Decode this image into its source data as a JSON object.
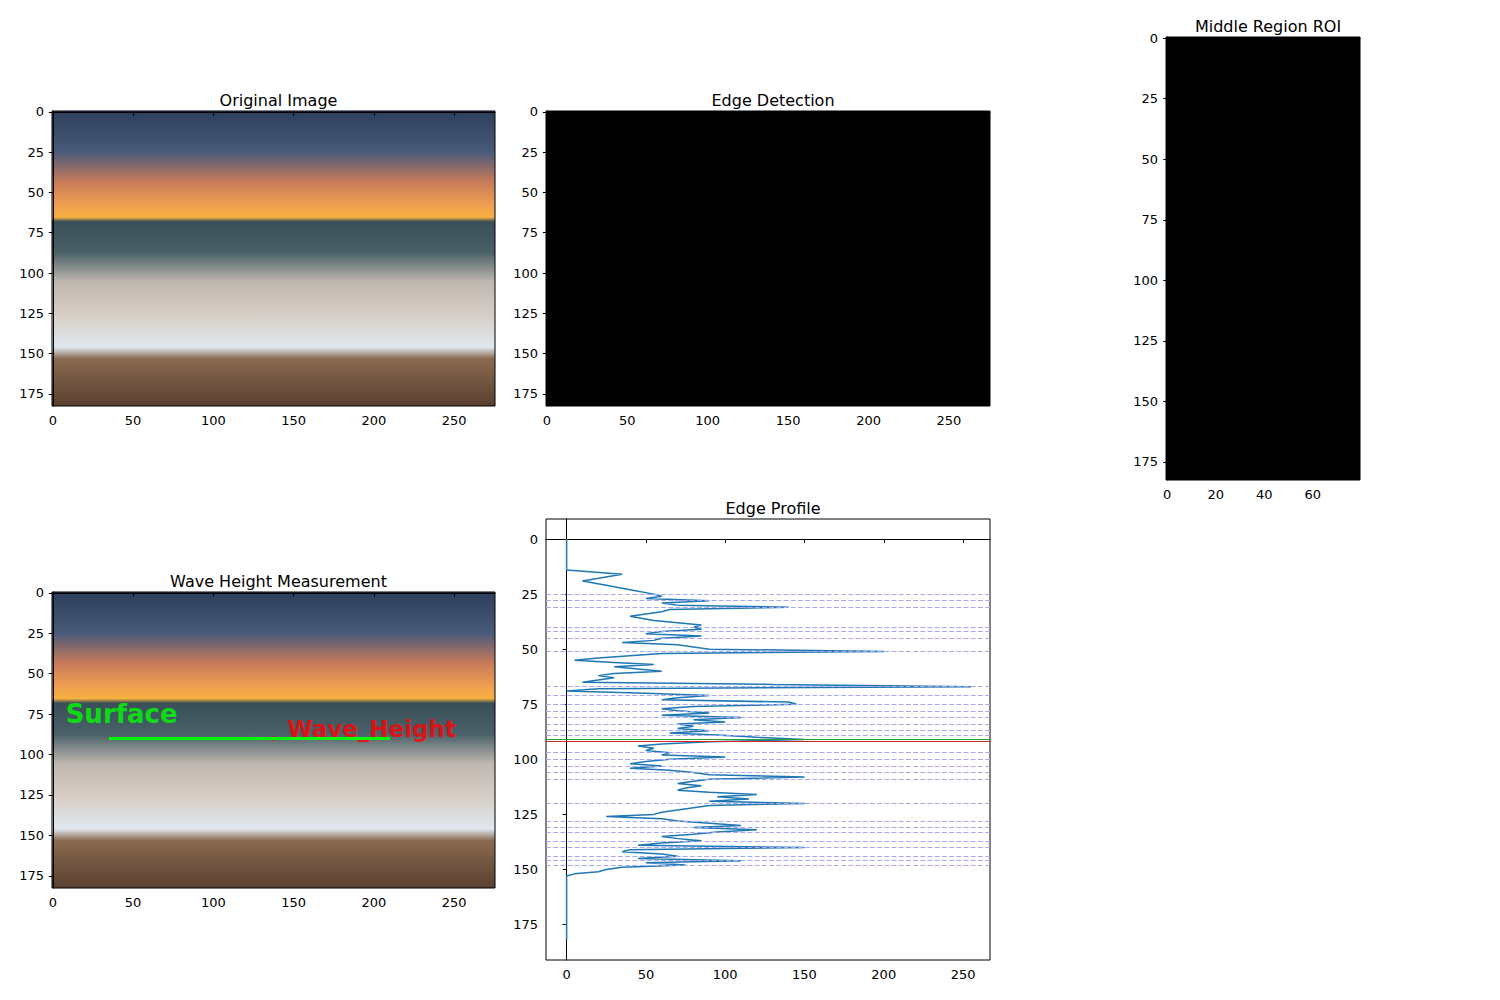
{
  "chart_data": [
    {
      "type": "image",
      "title": "Original Image",
      "xlim": [
        -0.5,
        275.5
      ],
      "ylim": [
        182.5,
        -0.5
      ],
      "xticks": [
        0,
        50,
        100,
        150,
        200,
        250
      ],
      "yticks": [
        0,
        25,
        50,
        75,
        100,
        125,
        150,
        175
      ]
    },
    {
      "type": "image",
      "title": "Edge Detection",
      "color": "#000000",
      "xlim": [
        -0.5,
        275.5
      ],
      "ylim": [
        182.5,
        -0.5
      ],
      "xticks": [
        0,
        50,
        100,
        150,
        200,
        250
      ],
      "yticks": [
        0,
        25,
        50,
        75,
        100,
        125,
        150,
        175
      ]
    },
    {
      "type": "image",
      "title": "Middle Region ROI",
      "color": "#000000",
      "xlim": [
        -0.5,
        79.5
      ],
      "ylim": [
        182.5,
        -0.5
      ],
      "xticks": [
        0,
        20,
        40,
        60
      ],
      "yticks": [
        0,
        25,
        50,
        75,
        100,
        125,
        150,
        175
      ]
    },
    {
      "type": "image",
      "title": "Wave Height Measurement",
      "xlim": [
        -0.5,
        275.5
      ],
      "ylim": [
        182.5,
        -0.5
      ],
      "xticks": [
        0,
        50,
        100,
        150,
        200,
        250
      ],
      "yticks": [
        0,
        25,
        50,
        75,
        100,
        125,
        150,
        175
      ],
      "annotations": [
        {
          "text": "Surface",
          "x": 8,
          "y": 75,
          "color": "#00ff00"
        },
        {
          "text": "Wave_Height",
          "x": 146,
          "y": 84,
          "color": "#ff0000"
        }
      ],
      "segments": [
        {
          "x": [
            35,
            210
          ],
          "y": [
            90,
            90
          ],
          "color": "#00ff00"
        }
      ],
      "points": [
        {
          "x": 137,
          "y": 90,
          "color": "#ff0000"
        }
      ]
    },
    {
      "type": "line",
      "title": "Edge Profile",
      "color": "#1f77b4",
      "xlim": [
        -13,
        267
      ],
      "ylim": [
        191.1,
        -9.1
      ],
      "xticks": [
        0,
        50,
        100,
        150,
        200,
        250
      ],
      "yticks": [
        0,
        25,
        50,
        75,
        100,
        125,
        150,
        175
      ],
      "x": [
        0,
        0,
        35,
        10,
        25,
        40,
        55,
        60,
        50,
        90,
        60,
        70,
        140,
        65,
        60,
        40,
        55,
        70,
        85,
        80,
        85,
        60,
        50,
        85,
        60,
        55,
        35,
        70,
        80,
        90,
        200,
        60,
        40,
        20,
        5,
        30,
        55,
        30,
        45,
        60,
        30,
        20,
        30,
        20,
        10,
        130,
        255,
        20,
        0,
        50,
        90,
        70,
        60,
        140,
        145,
        80,
        60,
        70,
        90,
        60,
        110,
        80,
        100,
        70,
        80,
        70,
        90,
        65,
        95,
        120,
        150,
        90,
        60,
        45,
        55,
        50,
        65,
        60,
        100,
        65,
        50,
        40,
        60,
        40,
        65,
        80,
        90,
        150,
        90,
        80,
        70,
        85,
        75,
        70,
        90,
        120,
        95,
        115,
        90,
        150,
        90,
        80,
        70,
        60,
        55,
        25,
        60,
        70,
        90,
        110,
        80,
        120,
        95,
        80,
        60,
        70,
        85,
        60,
        45,
        150,
        40,
        35,
        60,
        70,
        45,
        110,
        50,
        75,
        35,
        25,
        20,
        5,
        0,
        0
      ],
      "y": [
        0,
        14,
        16,
        19,
        21,
        23,
        25,
        26,
        27,
        28,
        29,
        30,
        31,
        32,
        33,
        35,
        37,
        38,
        39,
        40,
        41,
        42,
        43,
        44,
        45,
        46,
        47,
        48,
        49,
        50,
        51,
        52,
        53,
        54,
        55,
        56,
        57,
        58,
        59,
        60,
        61,
        62,
        63,
        64,
        65,
        66,
        67,
        68,
        69,
        70,
        71,
        72,
        73,
        74,
        75,
        76,
        77,
        78,
        79,
        80,
        81,
        82,
        83,
        84,
        85,
        86,
        87,
        88,
        89,
        90,
        91,
        92,
        93,
        94,
        95,
        96,
        97,
        98,
        99,
        100,
        101,
        102,
        103,
        104,
        105,
        106,
        107,
        108,
        109,
        110,
        111,
        112,
        113,
        114,
        115,
        116,
        117,
        118,
        119,
        120,
        121,
        122,
        123,
        124,
        125,
        126,
        127,
        128,
        129,
        130,
        131,
        132,
        133,
        134,
        135,
        136,
        137,
        138,
        139,
        140,
        141,
        142,
        143,
        144,
        145,
        146,
        147,
        148,
        149,
        150,
        151,
        152,
        153,
        182
      ],
      "reference_lines": [
        {
          "rows": [
            25,
            28,
            31,
            40,
            42,
            45,
            51,
            67,
            71,
            75,
            78,
            81,
            84,
            87,
            89,
            97,
            100,
            103,
            106,
            109,
            120,
            128,
            131,
            133,
            137,
            140,
            144,
            146,
            148
          ],
          "color": "#a8a8f0",
          "line_style": "dashed"
        },
        {
          "rows": [
            91
          ],
          "color": "#2ca02c",
          "line_style": "solid"
        },
        {
          "rows": [
            92
          ],
          "color": "#d62728",
          "line_style": "solid"
        }
      ]
    }
  ]
}
